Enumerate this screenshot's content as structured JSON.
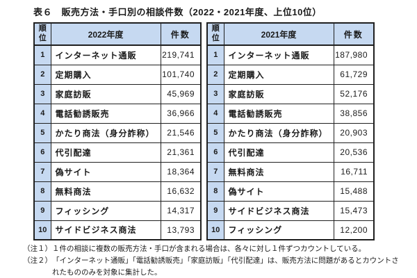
{
  "title": "表６　販売方法・手口別の相談件数（2022・2021年度、上位10位）",
  "colors": {
    "header_bg": "#c6d9f1",
    "border": "#1f1f1f",
    "text": "#1a1a1a"
  },
  "tables": [
    {
      "rank_header": "順位",
      "year_header": "2022年度",
      "count_header": "件数",
      "rows": [
        {
          "rank": "1",
          "item": "インターネット通販",
          "count": "219,741"
        },
        {
          "rank": "2",
          "item": "定期購入",
          "count": "101,740"
        },
        {
          "rank": "3",
          "item": "家庭訪販",
          "count": "45,969"
        },
        {
          "rank": "4",
          "item": "電話勧誘販売",
          "count": "36,966"
        },
        {
          "rank": "5",
          "item": "かたり商法（身分詐称）",
          "count": "21,546"
        },
        {
          "rank": "6",
          "item": "代引配達",
          "count": "21,361"
        },
        {
          "rank": "7",
          "item": "偽サイト",
          "count": "18,364"
        },
        {
          "rank": "8",
          "item": "無料商法",
          "count": "16,632"
        },
        {
          "rank": "9",
          "item": "フィッシング",
          "count": "14,317"
        },
        {
          "rank": "10",
          "item": "サイドビジネス商法",
          "count": "13,793"
        }
      ]
    },
    {
      "rank_header": "順位",
      "year_header": "2021年度",
      "count_header": "件数",
      "rows": [
        {
          "rank": "1",
          "item": "インターネット通販",
          "count": "187,980"
        },
        {
          "rank": "2",
          "item": "定期購入",
          "count": "61,729"
        },
        {
          "rank": "3",
          "item": "家庭訪販",
          "count": "52,176"
        },
        {
          "rank": "4",
          "item": "電話勧誘販売",
          "count": "38,856"
        },
        {
          "rank": "5",
          "item": "かたり商法（身分詐称）",
          "count": "20,903"
        },
        {
          "rank": "6",
          "item": "代引配達",
          "count": "20,536"
        },
        {
          "rank": "7",
          "item": "無料商法",
          "count": "16,711"
        },
        {
          "rank": "8",
          "item": "偽サイト",
          "count": "15,488"
        },
        {
          "rank": "9",
          "item": "サイドビジネス商法",
          "count": "15,473"
        },
        {
          "rank": "10",
          "item": "フィッシング",
          "count": "12,200"
        }
      ]
    }
  ],
  "notes": [
    {
      "label": "（注１）",
      "text": "１件の相談に複数の販売方法・手口が含まれる場合は、各々に対し１件ずつカウントしている。"
    },
    {
      "label": "（注２）",
      "text": "「インターネット通販」「電話勧誘販売」「家庭訪販」「代引配達」は、販売方法に問題があるとカウントされたもののみを対象に集計した。"
    }
  ]
}
